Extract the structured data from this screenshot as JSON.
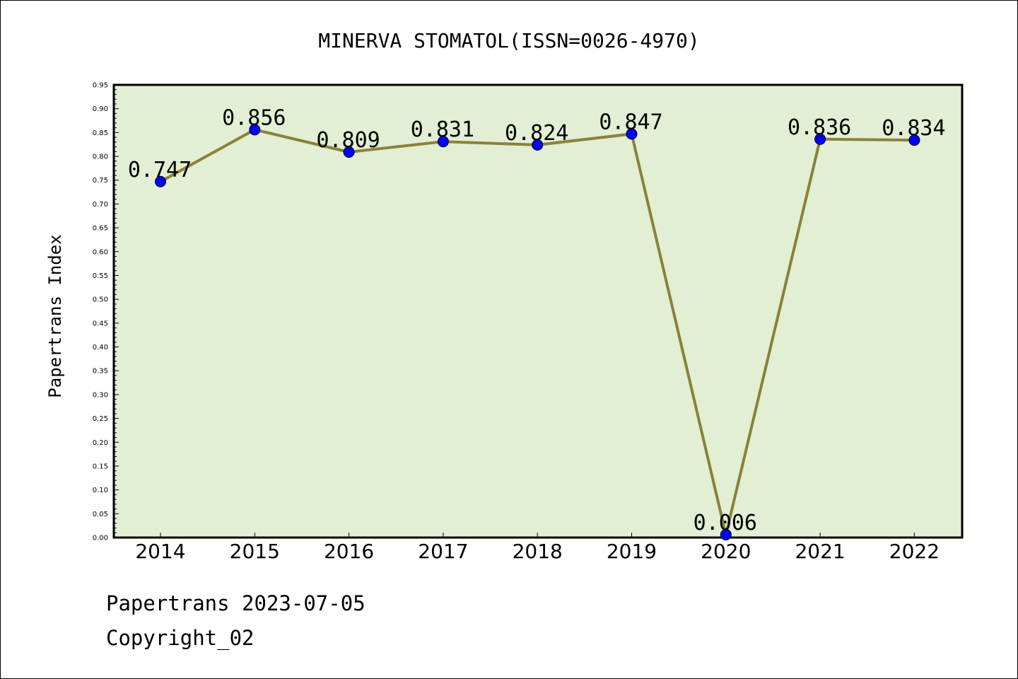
{
  "chart_data": {
    "type": "line",
    "title": "MINERVA STOMATOL(ISSN=0026-4970)",
    "xlabel": "",
    "ylabel": "Papertrans Index",
    "categories": [
      "2014",
      "2015",
      "2016",
      "2017",
      "2018",
      "2019",
      "2020",
      "2021",
      "2022"
    ],
    "series": [
      {
        "values": [
          0.747,
          0.856,
          0.809,
          0.831,
          0.824,
          0.847,
          0.006,
          0.836,
          0.834
        ]
      }
    ],
    "data_labels": [
      "0.747",
      "0.856",
      "0.809",
      "0.831",
      "0.824",
      "0.847",
      "0.006",
      "0.836",
      "0.834"
    ],
    "ylim": [
      0,
      0.95
    ],
    "yticks": [
      "0.00",
      "0.05",
      "0.10",
      "0.15",
      "0.20",
      "0.25",
      "0.30",
      "0.35",
      "0.40",
      "0.45",
      "0.50",
      "0.55",
      "0.60",
      "0.65",
      "0.70",
      "0.75",
      "0.80",
      "0.85",
      "0.90",
      "0.95"
    ],
    "grid": false,
    "legend": "none",
    "colors": {
      "plot_background": "#e2efd4",
      "line": "#8b8139",
      "marker": "#0000ff"
    }
  },
  "footer": {
    "date_line": "Papertrans 2023-07-05",
    "copyright": "Copyright_02"
  }
}
